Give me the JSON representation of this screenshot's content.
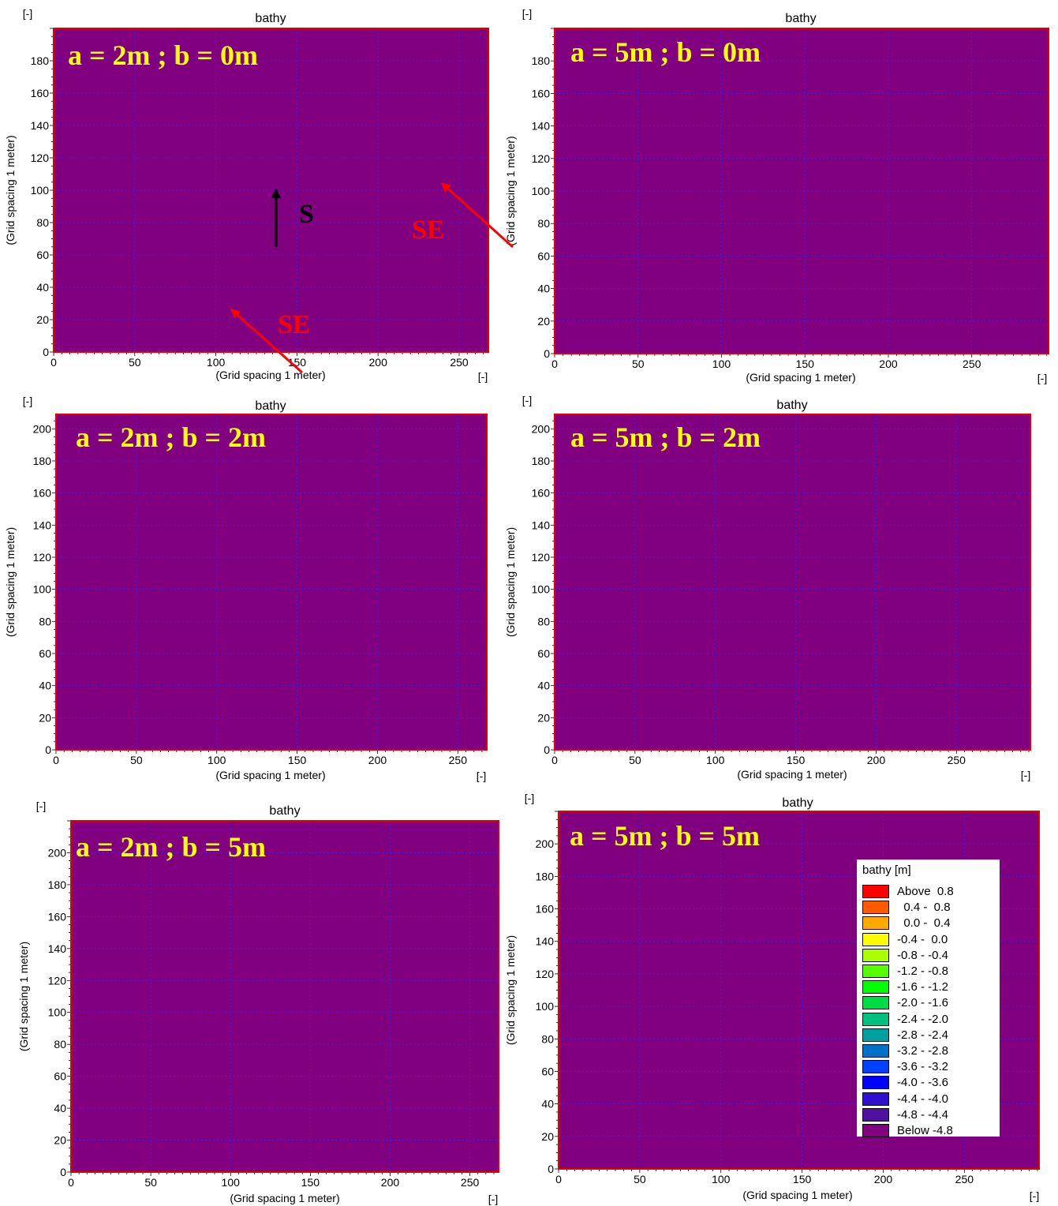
{
  "figure": {
    "background": "#ffffff"
  },
  "style": {
    "plot_fill": "#800080",
    "frame_color": "#e00000",
    "grid_color": "#3030ff",
    "annotation_text_color": "#ffff00",
    "arrow_s_color": "#000000",
    "arrow_se_color": "#ff0000"
  },
  "chart_data": [
    {
      "id": "p1",
      "type": "heatmap",
      "title": "bathy",
      "corner_label": "[-]",
      "xunit_label": "[-]",
      "xlabel": "(Grid spacing 1 meter)",
      "ylabel": "(Grid spacing 1 meter)",
      "xlim": [
        0,
        268
      ],
      "ylim": [
        0,
        200
      ],
      "xticks": [
        0,
        50,
        100,
        150,
        200,
        250
      ],
      "yticks": [
        0,
        20,
        40,
        60,
        80,
        100,
        120,
        140,
        160,
        180
      ],
      "annotation": "a = 2m ; b = 0m",
      "field_value_class": "Below -4.8",
      "grid": true
    },
    {
      "id": "p2",
      "type": "heatmap",
      "title": "bathy",
      "corner_label": "[-]",
      "xunit_label": "[-]",
      "xlabel": "(Grid spacing 1 meter)",
      "ylabel": "(Grid spacing 1 meter)",
      "xlim": [
        0,
        296
      ],
      "ylim": [
        0,
        200
      ],
      "xticks": [
        0,
        50,
        100,
        150,
        200,
        250
      ],
      "yticks": [
        0,
        20,
        40,
        60,
        80,
        100,
        120,
        140,
        160,
        180
      ],
      "annotation": "a = 5m ; b = 0m",
      "field_value_class": "Below -4.8",
      "grid": true
    },
    {
      "id": "p3",
      "type": "heatmap",
      "title": "bathy",
      "corner_label": "[-]",
      "xunit_label": "[-]",
      "xlabel": "(Grid spacing 1 meter)",
      "ylabel": "(Grid spacing 1 meter)",
      "xlim": [
        0,
        268
      ],
      "ylim": [
        0,
        209
      ],
      "xticks": [
        0,
        50,
        100,
        150,
        200,
        250
      ],
      "yticks": [
        0,
        20,
        40,
        60,
        80,
        100,
        120,
        140,
        160,
        180,
        200
      ],
      "annotation": "a = 2m ; b = 2m",
      "field_value_class": "Below -4.8",
      "grid": true
    },
    {
      "id": "p4",
      "type": "heatmap",
      "title": "bathy",
      "corner_label": "[-]",
      "xunit_label": "[-]",
      "xlabel": "(Grid spacing 1 meter)",
      "ylabel": "(Grid spacing 1 meter)",
      "xlim": [
        0,
        296
      ],
      "ylim": [
        0,
        209
      ],
      "xticks": [
        0,
        50,
        100,
        150,
        200,
        250
      ],
      "yticks": [
        0,
        20,
        40,
        60,
        80,
        100,
        120,
        140,
        160,
        180,
        200
      ],
      "annotation": "a = 5m ; b = 2m",
      "field_value_class": "Below -4.8",
      "grid": true
    },
    {
      "id": "p5",
      "type": "heatmap",
      "title": "bathy",
      "corner_label": "[-]",
      "xunit_label": "[-]",
      "xlabel": "(Grid spacing 1 meter)",
      "ylabel": "(Grid spacing 1 meter)",
      "xlim": [
        0,
        268
      ],
      "ylim": [
        0,
        220
      ],
      "xticks": [
        0,
        50,
        100,
        150,
        200,
        250
      ],
      "yticks": [
        0,
        20,
        40,
        60,
        80,
        100,
        120,
        140,
        160,
        180,
        200
      ],
      "annotation": "a = 2m ; b = 5m",
      "field_value_class": "Below -4.8",
      "grid": true
    },
    {
      "id": "p6",
      "type": "heatmap",
      "title": "bathy",
      "corner_label": "[-]",
      "xunit_label": "[-]",
      "xlabel": "(Grid spacing 1 meter)",
      "ylabel": "(Grid spacing 1 meter)",
      "xlim": [
        0,
        296
      ],
      "ylim": [
        0,
        220
      ],
      "xticks": [
        0,
        50,
        100,
        150,
        200,
        250
      ],
      "yticks": [
        0,
        20,
        40,
        60,
        80,
        100,
        120,
        140,
        160,
        180,
        200
      ],
      "annotation": "a = 5m ; b = 5m",
      "field_value_class": "Below -4.8",
      "grid": true
    }
  ],
  "wave_direction_labels": {
    "south": {
      "text": "S",
      "color": "#000000"
    },
    "southeast_a": {
      "text": "SE",
      "color": "#ff0000"
    },
    "southeast_b": {
      "text": "SE",
      "color": "#ff0000"
    }
  },
  "legend": {
    "title": "bathy [m]",
    "entries": [
      {
        "label": "Above  0.8",
        "color": "#ff0000"
      },
      {
        "label": "  0.4 -  0.8",
        "color": "#ff5a00"
      },
      {
        "label": "  0.0 -  0.4",
        "color": "#ffaa00"
      },
      {
        "label": "-0.4 -  0.0",
        "color": "#ffff00"
      },
      {
        "label": "-0.8 - -0.4",
        "color": "#aaff00"
      },
      {
        "label": "-1.2 - -0.8",
        "color": "#55ff00"
      },
      {
        "label": "-1.6 - -1.2",
        "color": "#00ff00"
      },
      {
        "label": "-2.0 - -1.6",
        "color": "#00dd44"
      },
      {
        "label": "-2.4 - -2.0",
        "color": "#00c080"
      },
      {
        "label": "-2.8 - -2.4",
        "color": "#00a0a0"
      },
      {
        "label": "-3.2 - -2.8",
        "color": "#0070c8"
      },
      {
        "label": "-3.6 - -3.2",
        "color": "#0040ff"
      },
      {
        "label": "-4.0 - -3.6",
        "color": "#0000ff"
      },
      {
        "label": "-4.4 - -4.0",
        "color": "#3010d0"
      },
      {
        "label": "-4.8 - -4.4",
        "color": "#5010a0"
      },
      {
        "label": "Below -4.8",
        "color": "#800080"
      }
    ]
  }
}
